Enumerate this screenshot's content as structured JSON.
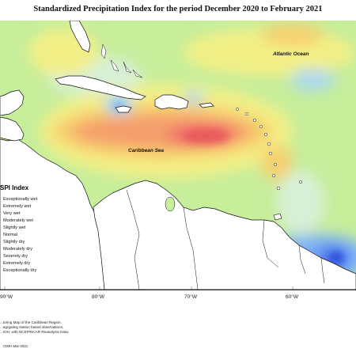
{
  "title": "Standardized Precipitation Index for the period December 2020 to February 2021",
  "labels": {
    "atlantic": "Atlantic Ocean",
    "caribbean": "Caribbean Sea"
  },
  "legend": {
    "title": "SPI Index",
    "items": [
      {
        "label": "Exceptionally wet",
        "color": "#2b4fd8"
      },
      {
        "label": "Extremely wet",
        "color": "#4f7bf0"
      },
      {
        "label": "Very wet",
        "color": "#7fb2f5"
      },
      {
        "label": "Moderately wet",
        "color": "#a9d8f2"
      },
      {
        "label": "Slightly wet",
        "color": "#cfeedb"
      },
      {
        "label": "Normal",
        "color": "#bfef9a"
      },
      {
        "label": "Slightly dry",
        "color": "#f2f17a"
      },
      {
        "label": "Moderately dry",
        "color": "#f7cf6e"
      },
      {
        "label": "Severely dry",
        "color": "#f59e6c"
      },
      {
        "label": "Extremely dry",
        "color": "#ef6f6a"
      },
      {
        "label": "Exceptionally dry",
        "color": "#d9434d"
      }
    ]
  },
  "longitudes": [
    "90°W",
    "80°W",
    "70°W",
    "60°W"
  ],
  "notes": [
    "...toring Map of the Caribbean Region.",
    "...egrgating station based observations,",
    "...IOH, with NCEP/NCAR Reanalysis Data."
  ],
  "copyright": "CIMH Mar-2021",
  "colors": {
    "land": "#ffffff",
    "background": "#c6ee9b",
    "coast": "#111111",
    "grid": "#777777"
  }
}
